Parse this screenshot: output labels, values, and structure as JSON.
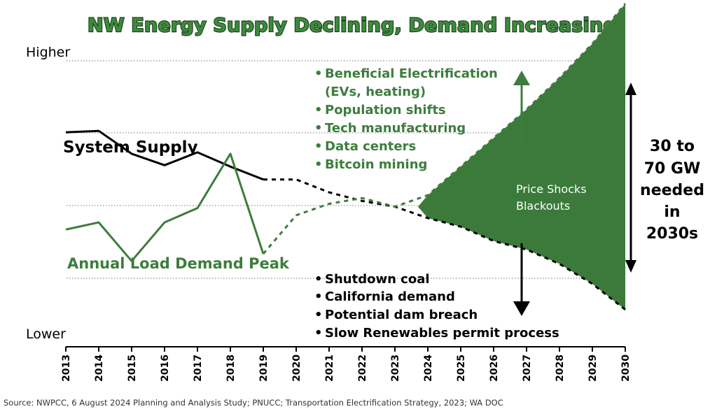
{
  "title": "NW Energy Supply Declining, Demand Increasing",
  "source": "Source: NWPCC, 6 August 2024 Planning and Analysis Study; PNUCC; Transportation Electrification Strategy, 2023; WA DOC",
  "colors": {
    "supply": "#000000",
    "demand": "#3d7d3d",
    "gap_fill": "#3b7a3b",
    "title_fill": "#3d8b3d",
    "title_outline": "#1a3d1a"
  },
  "chart_data": {
    "type": "line",
    "x": [
      2013,
      2014,
      2015,
      2016,
      2017,
      2018,
      2019,
      2020,
      2021,
      2022,
      2023,
      2024,
      2025,
      2026,
      2027,
      2028,
      2029,
      2030
    ],
    "y_scale": "relative, unlabeled",
    "ylim": [
      0,
      100
    ],
    "ylabel_top": "Higher",
    "ylabel_bottom": "Lower",
    "series": [
      {
        "name": "System Supply",
        "historical": {
          "x": [
            2013,
            2014,
            2015,
            2016,
            2017,
            2018,
            2019
          ],
          "y": [
            75,
            75.5,
            67.5,
            63.5,
            68,
            63,
            58.5
          ]
        },
        "projected": {
          "x": [
            2019,
            2020,
            2021,
            2022,
            2023,
            2024,
            2025,
            2026,
            2027,
            2028,
            2029,
            2030
          ],
          "y": [
            58.5,
            58.5,
            54,
            51,
            49,
            45,
            42,
            37,
            34,
            29,
            22,
            13
          ]
        }
      },
      {
        "name": "Annual Load Demand Peak",
        "historical": {
          "x": [
            2013,
            2014,
            2015,
            2016,
            2017,
            2018,
            2019
          ],
          "y": [
            41,
            43.5,
            30,
            43.5,
            48.5,
            67.5,
            32.5
          ]
        },
        "projected": {
          "x": [
            2019,
            2020,
            2021,
            2022,
            2023,
            2024,
            2025,
            2026,
            2027,
            2028,
            2029,
            2030
          ],
          "y": [
            32.5,
            46,
            50,
            52,
            49,
            53,
            63,
            73,
            83,
            94,
            106,
            120
          ]
        }
      }
    ],
    "annotations": {
      "upward_drivers": [
        "Beneficial Electrification",
        "(EVs, heating)",
        "Population shifts",
        "Tech manufacturing",
        "Data centers",
        "Bitcoin mining"
      ],
      "downward_drivers": [
        "Shutdown coal",
        "California demand",
        "Potential dam breach",
        "Slow Renewables permit process"
      ],
      "gap_label": [
        "Price Shocks",
        "Blackouts"
      ],
      "gap_size": [
        "30 to",
        "70 GW",
        "needed",
        "in",
        "2030s"
      ]
    }
  }
}
